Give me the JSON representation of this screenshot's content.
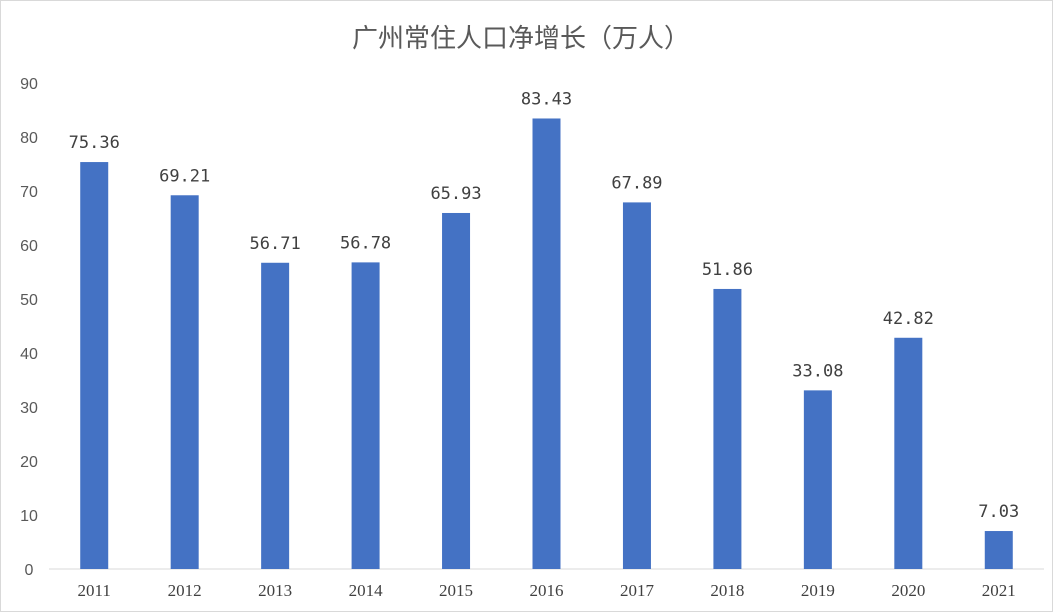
{
  "chart_data": {
    "type": "bar",
    "title": "广州常住人口净增长（万人）",
    "categories": [
      "2011",
      "2012",
      "2013",
      "2014",
      "2015",
      "2016",
      "2017",
      "2018",
      "2019",
      "2020",
      "2021"
    ],
    "values": [
      75.36,
      69.21,
      56.71,
      56.78,
      65.93,
      83.43,
      67.89,
      51.86,
      33.08,
      42.82,
      7.03
    ],
    "value_labels": [
      "75.36",
      "69.21",
      "56.71",
      "56.78",
      "65.93",
      "83.43",
      "67.89",
      "51.86",
      "33.08",
      "42.82",
      "7.03"
    ],
    "yticks": [
      "0",
      "10",
      "20",
      "30",
      "40",
      "50",
      "60",
      "70",
      "80",
      "90"
    ],
    "ylim": [
      0,
      90
    ],
    "bar_color": "#4472C4",
    "grid": false,
    "legend": false
  }
}
